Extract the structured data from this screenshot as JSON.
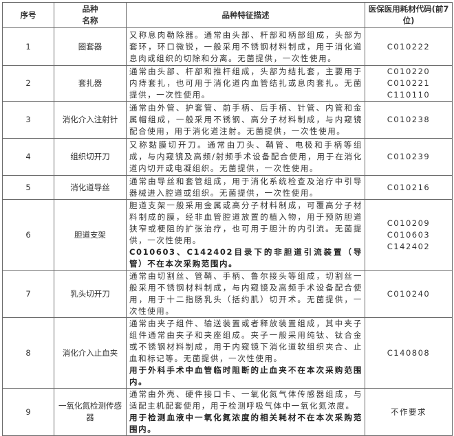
{
  "headers": {
    "index": "序号",
    "name_line1": "品种",
    "name_line2": "名称",
    "desc": "品种特征描述",
    "code": "医保医用耗材代码(前7位)"
  },
  "rows": [
    {
      "index": "1",
      "name": "圈套器",
      "desc": "又称息肉勒除器。通常由头部、杆部和柄部组成，头部为套环，环口微锐，一般采用不锈钢材料制成，用于消化道息肉或组织的切除和分离。无菌提供，一次性使用。",
      "note": "",
      "codes": [
        "C010222"
      ]
    },
    {
      "index": "2",
      "name": "套扎器",
      "desc": "通常由头部、杆部和推杆组成，头部为结扎套，主要用于内痔套扎，也可用于消化道内血管结扎或息肉套扎。无菌提供，一次性使用。",
      "note": "",
      "codes": [
        "C010220",
        "C010221",
        "C110110"
      ]
    },
    {
      "index": "3",
      "name": "消化介入注射针",
      "desc": "通常由外管、护套管、前手柄、后手柄、针管、内管和金属帽组成，一般采用不锈钢、高分子材料制成，与内窥镜配合使用，用于消化道注射。无菌提供，一次性使用。",
      "note": "",
      "codes": [
        "C010238"
      ]
    },
    {
      "index": "4",
      "name": "组织切开刀",
      "desc": "又称黏膜切开刀。通常由刀头、鞘管、电极和手柄等组成，与内窥镜及高频/射频手术设备配合使用，用于在消化道内切开或电凝组织。无菌提供，一次性使用。",
      "note": "",
      "codes": [
        "C010239"
      ]
    },
    {
      "index": "5",
      "name": "消化道导丝",
      "desc": "通常由导丝和套管组成，用于消化系统检查及治疗中引导器械进入腔道或组织。无菌提供，一次性使用。",
      "note": "",
      "codes": [
        "C010216"
      ]
    },
    {
      "index": "6",
      "name": "胆道支架",
      "desc": "胆道支架一般采用金属或高分子材料制成，可覆高分子材料制成的膜，经非血管腔道放置的植入物，用于预防胆道狭窄或梗阻的扩张治疗，也可用于胆汁的内引流。无菌提供，一次性使用。",
      "note": "C010603、C142402目录下的非胆道引流装置（导管）不在本次采购范围内。",
      "codes": [
        "C010209",
        "C010603",
        "C142402"
      ]
    },
    {
      "index": "7",
      "name": "乳头切开刀",
      "desc": "通常由切割丝、管鞘、手柄、鲁尔接头等组成，切割丝一般采用不锈钢材料制成，与内窥镜及高频手术设备配合使用，用于十二指肠乳头（括约肌）切开术。无菌提供，一次性使用。",
      "note": "",
      "codes": [
        "C010240"
      ]
    },
    {
      "index": "8",
      "name": "消化介入止血夹",
      "desc": "通常由夹子组件、输送装置或者释放装置组成，其中夹子组件通常由夹子和夹座组成。夹子一般采用纯钛、钛合金或不锈钢材料制成，用于内窥镜下消化道软组织夹合、止血和标记等。无菌提供，一次性使用。",
      "note": "用于外科手术中血管临时阻断的止血夹不在本次采购范围内。",
      "codes": [
        "C140808"
      ]
    },
    {
      "index": "9",
      "name": "一氧化氮检测传感器",
      "desc": "通常由外壳、硬件接口卡、一氧化氮气体传感器组成，与适配主机配套使用，用于检测呼吸气体中一氧化氮浓度。",
      "note": "用于检测血液中一氧化氮浓度的相关耗材不在本次采购范围内。",
      "codes": [
        "不作要求"
      ]
    }
  ]
}
